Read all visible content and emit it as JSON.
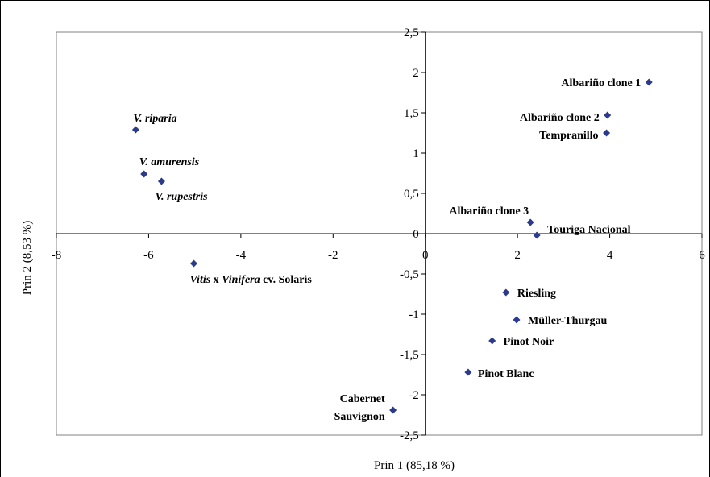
{
  "chart_data": {
    "type": "scatter",
    "title": "",
    "xlabel": "Prin 1 (85,18 %)",
    "ylabel": "Prin 2 (8,53 %)",
    "xlim": [
      -8,
      6
    ],
    "ylim": [
      -2.5,
      2.5
    ],
    "x_ticks": [
      -8,
      -6,
      -4,
      -2,
      0,
      2,
      4,
      6
    ],
    "x_tick_labels": [
      "-8",
      "-6",
      "-4",
      "-2",
      "0",
      "2",
      "4",
      "6"
    ],
    "y_ticks": [
      -2.5,
      -2,
      -1.5,
      -1,
      -0.5,
      0,
      0.5,
      1,
      1.5,
      2,
      2.5
    ],
    "y_tick_labels": [
      "-2,5",
      "-2",
      "-1,5",
      "-1",
      "-0,5",
      "0",
      "0,5",
      "1",
      "1,5",
      "2",
      "2,5"
    ],
    "grid": false,
    "marker": "diamond",
    "colors": {
      "marker": "#2b3a8c",
      "axis": "#000000",
      "frame": "#808080"
    },
    "points": [
      {
        "x": 4.85,
        "y": 1.88,
        "label": "Albariño clone 1",
        "italic": false
      },
      {
        "x": 3.95,
        "y": 1.47,
        "label": "Albariño clone 2",
        "italic": false
      },
      {
        "x": 3.93,
        "y": 1.25,
        "label": "Tempranillo",
        "italic": false
      },
      {
        "x": 2.28,
        "y": 0.14,
        "label": "Albariño clone 3",
        "italic": false
      },
      {
        "x": 2.42,
        "y": -0.02,
        "label": "Touriga Nacional",
        "italic": false
      },
      {
        "x": -6.28,
        "y": 1.29,
        "label": "V. riparia",
        "italic": true
      },
      {
        "x": -6.1,
        "y": 0.74,
        "label": "V. amurensis",
        "italic": true
      },
      {
        "x": -5.72,
        "y": 0.65,
        "label": "V. rupestris",
        "italic": true
      },
      {
        "x": -5.02,
        "y": -0.37,
        "label": "Vitis x Vinifera cv. Solaris",
        "italic": false
      },
      {
        "x": 1.75,
        "y": -0.73,
        "label": "Riesling",
        "italic": false
      },
      {
        "x": 1.98,
        "y": -1.07,
        "label": "Müller-Thurgau",
        "italic": false
      },
      {
        "x": 1.45,
        "y": -1.33,
        "label": "Pinot Noir",
        "italic": false
      },
      {
        "x": 0.93,
        "y": -1.72,
        "label": "Pinot Blanc",
        "italic": false
      },
      {
        "x": -0.7,
        "y": -2.19,
        "label": "Cabernet Sauvignon",
        "italic": false
      }
    ]
  }
}
